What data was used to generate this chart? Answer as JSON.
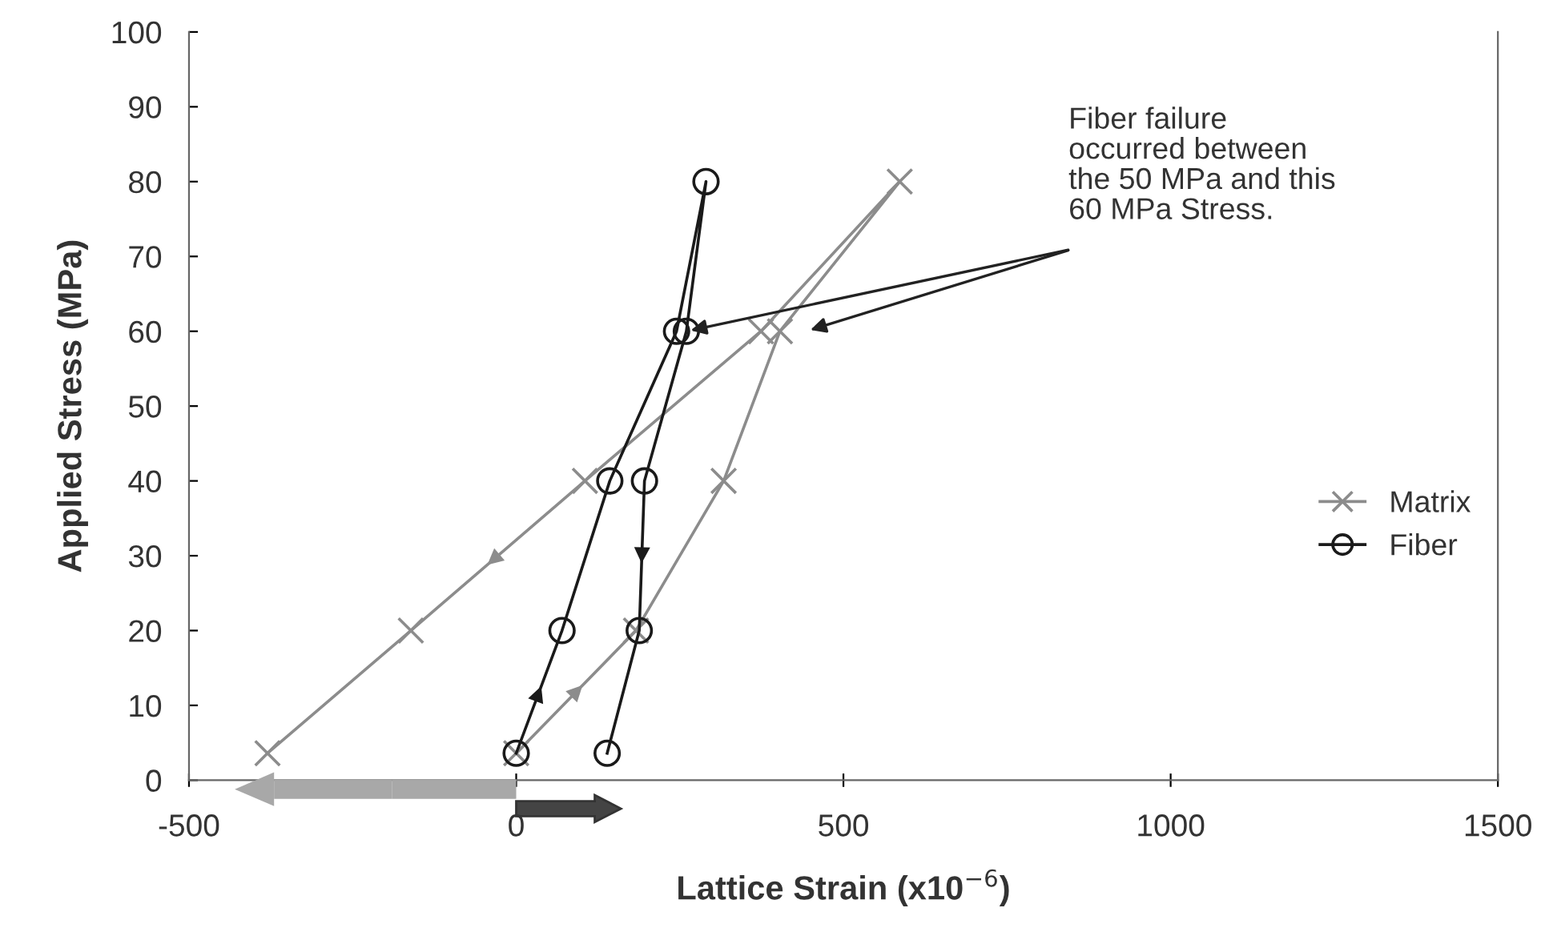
{
  "chart_data": {
    "type": "line",
    "xlabel": "Lattice Strain (x10$^{−6}$)",
    "ylabel": "Applied Stress (MPa)",
    "xlim": [
      -500,
      1500
    ],
    "xticks": [
      -500,
      0,
      500,
      1000,
      1500
    ],
    "ylim": [
      0,
      100
    ],
    "yticks": [
      0,
      10,
      20,
      30,
      40,
      50,
      60,
      70,
      80,
      90,
      100
    ],
    "grid": false,
    "legend": "right",
    "series": [
      {
        "name": "Matrix",
        "color": "#8c8c8c",
        "marker": "cross",
        "x": [
          0,
          183,
          317,
          403,
          586,
          374,
          105,
          -161,
          -380
        ],
        "values": [
          3.6,
          20,
          40,
          60,
          80,
          60,
          40,
          20,
          3.6
        ]
      },
      {
        "name": "Fiber",
        "color": "#1a1a1a",
        "marker": "circle",
        "x": [
          0,
          70,
          143,
          245,
          290,
          260,
          196,
          188,
          139
        ],
        "values": [
          3.6,
          20,
          40,
          60,
          80,
          60,
          40,
          20,
          3.6
        ]
      }
    ],
    "annotations": [
      {
        "text": "Fiber failure\noccurred between\nthe 50 MPa and this\n60 MPa Stress.",
        "x": 260,
        "y": 60
      }
    ]
  }
}
